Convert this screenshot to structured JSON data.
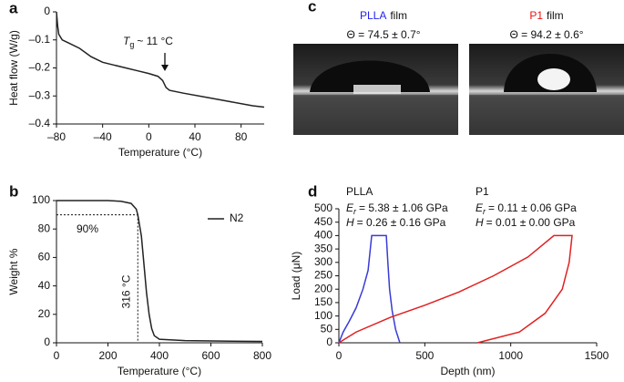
{
  "panel_labels": [
    "a",
    "b",
    "c",
    "d"
  ],
  "chart_data": [
    {
      "type": "line",
      "xlabel": "Temperature (°C)",
      "ylabel": "Heat flow (W/g)",
      "xlim": [
        -80,
        100
      ],
      "ylim": [
        -0.4,
        0
      ],
      "xticks": [
        {
          "value": -80,
          "label": "–80"
        },
        {
          "value": -40,
          "label": "–40"
        },
        0,
        40,
        80
      ],
      "yticks": [
        0,
        {
          "value": -0.1,
          "label": "–0.1"
        },
        {
          "value": -0.2,
          "label": "–0.2"
        },
        {
          "value": -0.3,
          "label": "–0.3"
        },
        {
          "value": -0.4,
          "label": "–0.4"
        }
      ],
      "color": "#222222",
      "x": [
        -80,
        -79,
        -78,
        -75,
        -70,
        -60,
        -50,
        -40,
        -30,
        -20,
        -10,
        0,
        8,
        12,
        15,
        18,
        30,
        50,
        70,
        90,
        100
      ],
      "values": [
        0,
        -0.05,
        -0.08,
        -0.1,
        -0.11,
        -0.13,
        -0.16,
        -0.18,
        -0.19,
        -0.2,
        -0.21,
        -0.22,
        -0.23,
        -0.245,
        -0.27,
        -0.28,
        -0.29,
        -0.305,
        -0.32,
        -0.335,
        -0.34
      ],
      "annotation": {
        "symbol": "T",
        "subscript": "g",
        "text": "~ 11 °C"
      }
    },
    {
      "type": "line",
      "xlabel": "Temperature (°C)",
      "ylabel": "Weight %",
      "xlim": [
        0,
        800
      ],
      "ylim": [
        0,
        100
      ],
      "xticks": [
        0,
        200,
        400,
        600,
        800
      ],
      "yticks": [
        0,
        20,
        40,
        60,
        80,
        100
      ],
      "legend": "upper right",
      "series": [
        {
          "name": "N2",
          "color": "#222222",
          "x": [
            0,
            100,
            200,
            250,
            290,
            310,
            316,
            330,
            340,
            350,
            360,
            370,
            380,
            400,
            500,
            650,
            800
          ],
          "values": [
            100,
            100,
            100,
            99.5,
            98,
            94,
            90,
            75,
            55,
            35,
            20,
            10,
            5,
            2.5,
            1.5,
            1.2,
            1
          ]
        }
      ],
      "reference_lines": {
        "x": 316,
        "y": 90
      },
      "reference_labels": [
        "90%",
        "316 °C"
      ]
    },
    {
      "type": "line",
      "xlabel": "Depth (nm)",
      "ylabel": "Load (μN)",
      "xlim": [
        0,
        1500
      ],
      "ylim": [
        0,
        500
      ],
      "xticks": [
        0,
        500,
        1000,
        1500
      ],
      "yticks": [
        0,
        50,
        100,
        150,
        200,
        250,
        300,
        350,
        400,
        450,
        500
      ],
      "series": [
        {
          "name": "PLLA",
          "color": "#3a3ad6",
          "x": [
            0,
            25,
            60,
            100,
            140,
            170,
            191,
            276,
            285,
            295,
            310,
            330,
            355
          ],
          "values": [
            0,
            40,
            80,
            130,
            200,
            270,
            400,
            400,
            300,
            200,
            120,
            50,
            0
          ],
          "properties": [
            {
              "symbol": "E",
              "subscript": "r",
              "text": "= 5.38 ± 1.06 GPa"
            },
            {
              "symbol": "H",
              "text": "= 0.26 ± 0.16 GPa"
            }
          ]
        },
        {
          "name": "P1",
          "color": "#e02020",
          "x": [
            0,
            100,
            300,
            500,
            700,
            900,
            1100,
            1251,
            1357,
            1340,
            1300,
            1200,
            1050,
            806
          ],
          "values": [
            0,
            40,
            95,
            140,
            190,
            250,
            320,
            400,
            400,
            300,
            200,
            110,
            40,
            0
          ],
          "properties": [
            {
              "symbol": "E",
              "subscript": "r",
              "text": "= 0.11 ± 0.06 GPa"
            },
            {
              "symbol": "H",
              "text": "= 0.01 ± 0.00 GPa"
            }
          ]
        }
      ]
    }
  ],
  "images": [
    {
      "name": "PLLA",
      "suffix": "film",
      "color": "#2222ee",
      "angle": "Θ = 74.5 ± 0.7°"
    },
    {
      "name": "P1",
      "suffix": "film",
      "color": "#ee1111",
      "angle": "Θ = 94.2 ± 0.6°"
    }
  ]
}
